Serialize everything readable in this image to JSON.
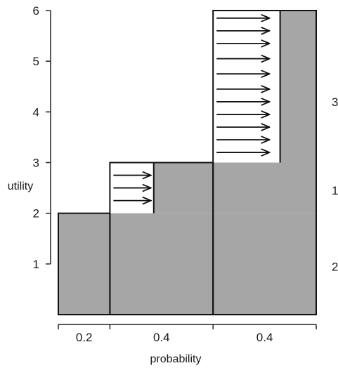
{
  "chart_data": {
    "type": "area",
    "title": "",
    "xlabel": "probability",
    "ylabel": "utility",
    "ylim": [
      0,
      6
    ],
    "y_ticks": [
      1,
      2,
      3,
      4,
      5,
      6
    ],
    "x_ticks": [
      {
        "position": 0.2,
        "label": "0.2"
      },
      {
        "position": 0.6,
        "label": "0.4"
      },
      {
        "position": 1.0,
        "label": "0.4"
      }
    ],
    "segments": [
      {
        "x_start": 0.0,
        "x_end": 0.2,
        "utility": 2
      },
      {
        "x_start": 0.2,
        "x_end": 0.6,
        "utility": 3
      },
      {
        "x_start": 0.6,
        "x_end": 1.0,
        "utility": 6
      }
    ],
    "gray_regions": [
      {
        "x_start": 0.0,
        "x_end": 1.0,
        "y_bottom": 0,
        "y_top": 2
      },
      {
        "x_start": 0.37,
        "x_end": 1.0,
        "y_bottom": 2,
        "y_top": 3
      },
      {
        "x_start": 0.86,
        "x_end": 1.0,
        "y_bottom": 3,
        "y_top": 6
      }
    ],
    "arrow_groups": [
      {
        "x_start": 0.2,
        "x_end": 0.37,
        "y_values": [
          2.25,
          2.5,
          2.75
        ]
      },
      {
        "x_start": 0.6,
        "x_end": 0.83,
        "y_values": [
          3.2,
          3.45,
          3.7,
          3.95,
          4.2,
          4.45,
          4.75,
          5.05,
          5.35,
          5.6,
          5.85
        ]
      }
    ],
    "right_labels": [
      {
        "y": 4.2,
        "text": "3"
      },
      {
        "y": 2.45,
        "text": "1"
      },
      {
        "y": 0.95,
        "text": "2"
      }
    ],
    "colors": {
      "fill": "#a6a6a6",
      "line": "#111111"
    },
    "grid": false
  }
}
